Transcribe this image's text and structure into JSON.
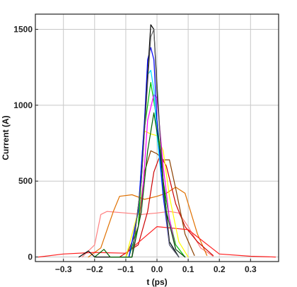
{
  "chart_data": {
    "type": "line",
    "title": "",
    "xlabel": "t (ps)",
    "ylabel": "Current (A)",
    "xlim": [
      -0.39,
      0.39
    ],
    "ylim": [
      -30,
      1600
    ],
    "grid": true,
    "legend": "none",
    "xticks": [
      {
        "value": -0.3,
        "label": "−0.3"
      },
      {
        "value": -0.2,
        "label": "−0.2"
      },
      {
        "value": -0.1,
        "label": "−0.1"
      },
      {
        "value": 0.0,
        "label": "0.0"
      },
      {
        "value": 0.1,
        "label": "0.1"
      },
      {
        "value": 0.2,
        "label": "0.2"
      },
      {
        "value": 0.3,
        "label": "0.3"
      }
    ],
    "yticks": [
      {
        "value": 0,
        "label": "0"
      },
      {
        "value": 500,
        "label": "500"
      },
      {
        "value": 1000,
        "label": "1000"
      },
      {
        "value": 1500,
        "label": "1500"
      }
    ],
    "series": [
      {
        "color": "#ff8080",
        "x": [
          -0.24,
          -0.2,
          -0.18,
          -0.16,
          -0.1,
          -0.05,
          0.0,
          0.04,
          0.07,
          0.1,
          0.14,
          0.18
        ],
        "y": [
          0,
          80,
          280,
          300,
          290,
          280,
          290,
          300,
          290,
          200,
          60,
          5
        ]
      },
      {
        "color": "#e07000",
        "x": [
          -0.22,
          -0.18,
          -0.14,
          -0.12,
          -0.08,
          -0.04,
          0.0,
          0.03,
          0.06,
          0.09,
          0.13,
          0.16
        ],
        "y": [
          0,
          60,
          300,
          400,
          410,
          380,
          400,
          420,
          460,
          420,
          150,
          10
        ]
      },
      {
        "color": "#cc0000",
        "x": [
          -0.12,
          -0.06,
          -0.03,
          -0.01,
          0.01,
          0.03,
          0.06,
          0.09,
          0.13,
          0.18
        ],
        "y": [
          0,
          80,
          300,
          560,
          670,
          600,
          350,
          200,
          100,
          10
        ]
      },
      {
        "color": "#8b4000",
        "x": [
          -0.1,
          -0.06,
          -0.04,
          -0.02,
          0.0,
          0.02,
          0.04,
          0.06,
          0.09,
          0.12
        ],
        "y": [
          0,
          200,
          560,
          700,
          680,
          640,
          640,
          450,
          150,
          10
        ]
      },
      {
        "color": "#ff2020",
        "x": [
          -0.38,
          -0.3,
          -0.2,
          -0.1,
          0.0,
          0.1,
          0.2,
          0.3,
          0.38
        ],
        "y": [
          0,
          20,
          30,
          25,
          200,
          180,
          20,
          5,
          0
        ]
      },
      {
        "color": "#ffff00",
        "x": [
          -0.1,
          -0.06,
          -0.04,
          -0.02,
          0.0,
          0.02,
          0.04,
          0.07,
          0.1
        ],
        "y": [
          0,
          300,
          830,
          810,
          800,
          700,
          400,
          100,
          0
        ]
      },
      {
        "color": "#00c000",
        "x": [
          -0.09,
          -0.06,
          -0.04,
          -0.02,
          0.0,
          0.02,
          0.04,
          0.06,
          0.09
        ],
        "y": [
          0,
          200,
          850,
          1150,
          900,
          500,
          250,
          80,
          0
        ]
      },
      {
        "color": "#ff00ff",
        "x": [
          -0.08,
          -0.05,
          -0.03,
          -0.01,
          0.0,
          0.02,
          0.04,
          0.06,
          0.09
        ],
        "y": [
          0,
          300,
          900,
          1070,
          1050,
          600,
          250,
          50,
          0
        ]
      },
      {
        "color": "#00e0ff",
        "x": [
          -0.09,
          -0.06,
          -0.04,
          -0.03,
          -0.02,
          -0.01,
          0.0,
          0.02,
          0.04,
          0.07
        ],
        "y": [
          0,
          300,
          900,
          1200,
          1230,
          1100,
          800,
          400,
          100,
          0
        ]
      },
      {
        "color": "#0000ff",
        "x": [
          -0.09,
          -0.06,
          -0.04,
          -0.03,
          -0.02,
          -0.01,
          0.0,
          0.02,
          0.04,
          0.07
        ],
        "y": [
          0,
          300,
          900,
          1300,
          1380,
          1300,
          900,
          400,
          80,
          0
        ]
      },
      {
        "color": "#000000",
        "x": [
          -0.25,
          -0.22,
          -0.2,
          -0.08,
          -0.05,
          -0.03,
          -0.02,
          -0.01,
          0.0,
          0.02,
          0.04,
          0.07
        ],
        "y": [
          0,
          40,
          0,
          0,
          500,
          1200,
          1530,
          1500,
          1100,
          500,
          100,
          0
        ]
      },
      {
        "color": "#606060",
        "x": [
          -0.08,
          -0.05,
          -0.03,
          -0.02,
          -0.01,
          0.0,
          0.02,
          0.04,
          0.07
        ],
        "y": [
          0,
          500,
          1150,
          1450,
          1500,
          1150,
          450,
          80,
          0
        ]
      },
      {
        "color": "#006000",
        "x": [
          -0.2,
          -0.17,
          -0.15,
          -0.08,
          -0.05,
          -0.03,
          -0.01,
          0.01,
          0.03,
          0.06,
          0.09
        ],
        "y": [
          0,
          50,
          0,
          0,
          300,
          700,
          950,
          700,
          300,
          50,
          0
        ]
      }
    ]
  }
}
